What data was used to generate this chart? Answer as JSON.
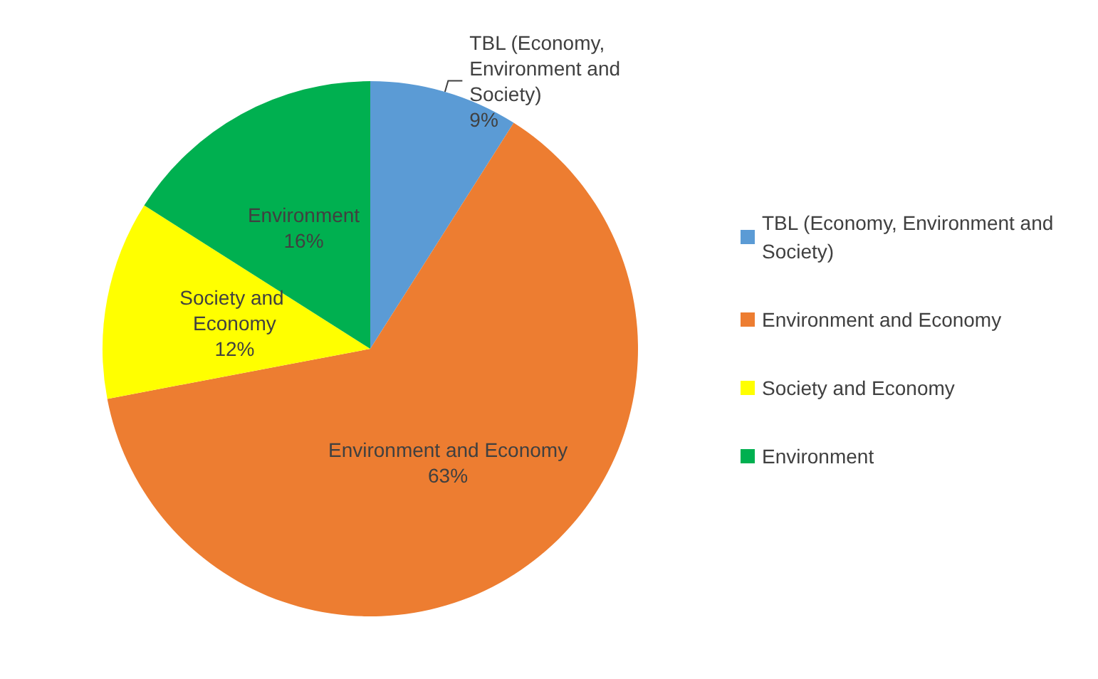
{
  "chart_data": {
    "type": "pie",
    "categories": [
      "TBL (Economy, Environment and Society)",
      "Environment and Economy",
      "Society and Economy",
      "Environment"
    ],
    "values": [
      9,
      63,
      12,
      16
    ],
    "value_labels": [
      "9%",
      "63%",
      "12%",
      "16%"
    ],
    "colors": [
      "#5b9bd5",
      "#ed7d31",
      "#ffff00",
      "#00b050"
    ],
    "legend": "right"
  }
}
